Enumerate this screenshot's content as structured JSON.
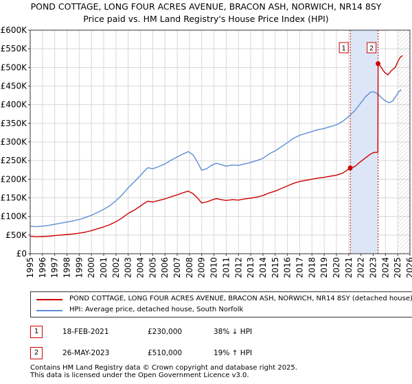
{
  "title_line1": "POND COTTAGE, LONG FOUR ACRES AVENUE, BRACON ASH, NORWICH, NR14 8SY",
  "title_line2": "Price paid vs. HM Land Registry's House Price Index (HPI)",
  "colors": {
    "price_line": "#cc0000",
    "hpi_line": "#5b8dd6",
    "highlight_band": "#dde6f7",
    "marker_line": "#cc0000",
    "grid": "#d8d8d8",
    "future_hatch": "#999999"
  },
  "chart_data": {
    "type": "line",
    "title": "POND COTTAGE, LONG FOUR ACRES AVENUE, BRACON ASH, NORWICH, NR14 8SY",
    "subtitle": "Price paid vs. HM Land Registry's House Price Index (HPI)",
    "xlim": [
      1995,
      2026
    ],
    "ylim": [
      0,
      600000
    ],
    "x_ticks": [
      1995,
      1996,
      1997,
      1998,
      1999,
      2000,
      2001,
      2002,
      2003,
      2004,
      2005,
      2006,
      2007,
      2008,
      2009,
      2010,
      2011,
      2012,
      2013,
      2014,
      2015,
      2016,
      2017,
      2018,
      2019,
      2020,
      2021,
      2022,
      2023,
      2024,
      2025,
      2026
    ],
    "y_ticks": [
      0,
      50000,
      100000,
      150000,
      200000,
      250000,
      300000,
      350000,
      400000,
      450000,
      500000,
      550000,
      600000
    ],
    "y_tick_labels": [
      "£0",
      "£50K",
      "£100K",
      "£150K",
      "£200K",
      "£250K",
      "£300K",
      "£350K",
      "£400K",
      "£450K",
      "£500K",
      "£550K",
      "£600K"
    ],
    "grid": true,
    "highlight_range": [
      2021.13,
      2023.4
    ],
    "future_from": 2025.0,
    "series": [
      {
        "name": "POND COTTAGE, LONG FOUR ACRES AVENUE, BRACON ASH, NORWICH, NR14 8SY (detached house)",
        "color": "#cc0000",
        "points": [
          [
            1995,
            47000
          ],
          [
            1995.5,
            45500
          ],
          [
            1996,
            46000
          ],
          [
            1996.5,
            47000
          ],
          [
            1997,
            48500
          ],
          [
            1997.5,
            50000
          ],
          [
            1998,
            51500
          ],
          [
            1998.5,
            53000
          ],
          [
            1999,
            55000
          ],
          [
            1999.5,
            58000
          ],
          [
            2000,
            62000
          ],
          [
            2000.5,
            67000
          ],
          [
            2001,
            72000
          ],
          [
            2001.5,
            78000
          ],
          [
            2002,
            86000
          ],
          [
            2002.5,
            96000
          ],
          [
            2003,
            108000
          ],
          [
            2003.5,
            117000
          ],
          [
            2004,
            128000
          ],
          [
            2004.3,
            135000
          ],
          [
            2004.6,
            141000
          ],
          [
            2005,
            139000
          ],
          [
            2005.5,
            143000
          ],
          [
            2006,
            147000
          ],
          [
            2006.5,
            153000
          ],
          [
            2007,
            158000
          ],
          [
            2007.5,
            164000
          ],
          [
            2007.9,
            168000
          ],
          [
            2008.3,
            161000
          ],
          [
            2008.7,
            148000
          ],
          [
            2009,
            136000
          ],
          [
            2009.4,
            139000
          ],
          [
            2009.8,
            144000
          ],
          [
            2010.2,
            148000
          ],
          [
            2010.6,
            145000
          ],
          [
            2011,
            143000
          ],
          [
            2011.5,
            145000
          ],
          [
            2012,
            144000
          ],
          [
            2012.5,
            147000
          ],
          [
            2013,
            149000
          ],
          [
            2013.5,
            152000
          ],
          [
            2014,
            156000
          ],
          [
            2014.5,
            163000
          ],
          [
            2015,
            168000
          ],
          [
            2015.5,
            175000
          ],
          [
            2016,
            182000
          ],
          [
            2016.5,
            189000
          ],
          [
            2017,
            194000
          ],
          [
            2017.5,
            197000
          ],
          [
            2018,
            200000
          ],
          [
            2018.5,
            203000
          ],
          [
            2019,
            205000
          ],
          [
            2019.5,
            208000
          ],
          [
            2020,
            211000
          ],
          [
            2020.5,
            216000
          ],
          [
            2021.13,
            230000
          ],
          [
            2021.5,
            234000
          ],
          [
            2022,
            248000
          ],
          [
            2022.4,
            258000
          ],
          [
            2022.8,
            268000
          ],
          [
            2023.1,
            272000
          ],
          [
            2023.38,
            272000
          ],
          [
            2023.4,
            510000
          ],
          [
            2023.6,
            503000
          ],
          [
            2023.9,
            488000
          ],
          [
            2024.2,
            480000
          ],
          [
            2024.5,
            492000
          ],
          [
            2024.8,
            500000
          ],
          [
            2025,
            515000
          ],
          [
            2025.2,
            527000
          ],
          [
            2025.4,
            532000
          ]
        ]
      },
      {
        "name": "HPI: Average price, detached house, South Norfolk",
        "color": "#5b8dd6",
        "points": [
          [
            1995,
            74000
          ],
          [
            1995.5,
            72500
          ],
          [
            1996,
            74000
          ],
          [
            1996.5,
            76000
          ],
          [
            1997,
            79000
          ],
          [
            1997.5,
            82000
          ],
          [
            1998,
            85000
          ],
          [
            1998.5,
            88000
          ],
          [
            1999,
            92000
          ],
          [
            1999.5,
            97000
          ],
          [
            2000,
            103000
          ],
          [
            2000.5,
            111000
          ],
          [
            2001,
            119000
          ],
          [
            2001.5,
            129000
          ],
          [
            2002,
            142000
          ],
          [
            2002.5,
            158000
          ],
          [
            2003,
            177000
          ],
          [
            2003.5,
            193000
          ],
          [
            2004,
            210000
          ],
          [
            2004.3,
            221000
          ],
          [
            2004.6,
            231000
          ],
          [
            2005,
            228000
          ],
          [
            2005.5,
            234000
          ],
          [
            2006,
            241000
          ],
          [
            2006.5,
            251000
          ],
          [
            2007,
            260000
          ],
          [
            2007.5,
            268000
          ],
          [
            2007.9,
            274000
          ],
          [
            2008.3,
            265000
          ],
          [
            2008.7,
            243000
          ],
          [
            2009,
            224000
          ],
          [
            2009.4,
            228000
          ],
          [
            2009.8,
            237000
          ],
          [
            2010.2,
            243000
          ],
          [
            2010.6,
            239000
          ],
          [
            2011,
            235000
          ],
          [
            2011.5,
            238000
          ],
          [
            2012,
            237000
          ],
          [
            2012.5,
            241000
          ],
          [
            2013,
            245000
          ],
          [
            2013.5,
            250000
          ],
          [
            2014,
            256000
          ],
          [
            2014.5,
            268000
          ],
          [
            2015,
            276000
          ],
          [
            2015.5,
            287000
          ],
          [
            2016,
            298000
          ],
          [
            2016.5,
            310000
          ],
          [
            2017,
            318000
          ],
          [
            2017.5,
            323000
          ],
          [
            2018,
            328000
          ],
          [
            2018.5,
            333000
          ],
          [
            2019,
            336000
          ],
          [
            2019.5,
            341000
          ],
          [
            2020,
            346000
          ],
          [
            2020.5,
            355000
          ],
          [
            2021.13,
            372000
          ],
          [
            2021.5,
            384000
          ],
          [
            2022,
            405000
          ],
          [
            2022.4,
            422000
          ],
          [
            2022.8,
            434000
          ],
          [
            2023.1,
            434000
          ],
          [
            2023.4,
            428000
          ],
          [
            2023.7,
            418000
          ],
          [
            2024,
            410000
          ],
          [
            2024.3,
            405000
          ],
          [
            2024.6,
            410000
          ],
          [
            2024.9,
            425000
          ],
          [
            2025.1,
            435000
          ],
          [
            2025.3,
            440000
          ]
        ]
      }
    ],
    "markers": [
      {
        "label": "1",
        "x": 2021.13,
        "y": 230000
      },
      {
        "label": "2",
        "x": 2023.4,
        "y": 510000
      }
    ]
  },
  "legend": {
    "price_label": "POND COTTAGE, LONG FOUR ACRES AVENUE, BRACON ASH, NORWICH, NR14 8SY (detached house)",
    "hpi_label": "HPI: Average price, detached house, South Norfolk"
  },
  "transactions": [
    {
      "num": "1",
      "date": "18-FEB-2021",
      "price": "£230,000",
      "hpi": "38% ↓ HPI"
    },
    {
      "num": "2",
      "date": "26-MAY-2023",
      "price": "£510,000",
      "hpi": "19% ↑ HPI"
    }
  ],
  "footer": {
    "line1": "Contains HM Land Registry data © Crown copyright and database right 2025.",
    "line2": "This data is licensed under the Open Government Licence v3.0."
  }
}
